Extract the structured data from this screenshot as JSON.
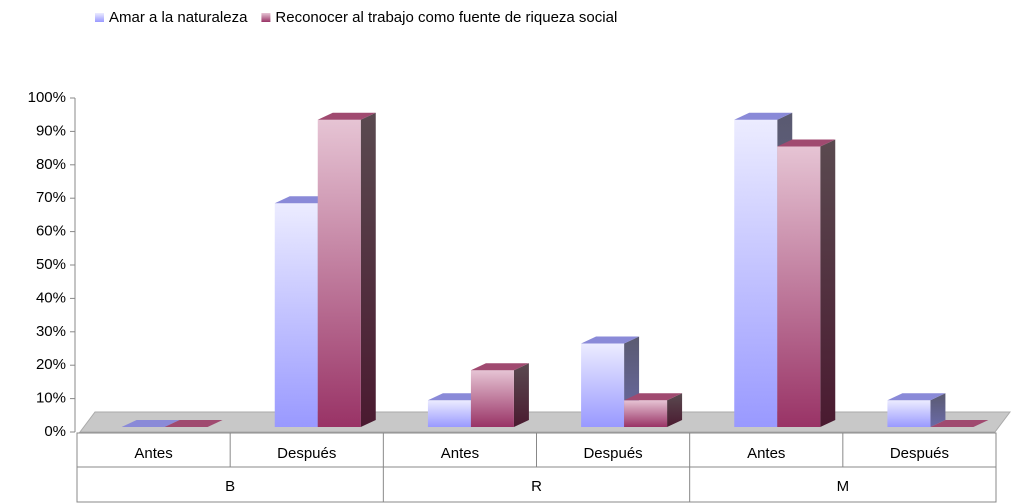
{
  "chart_data": {
    "type": "bar3d",
    "categories": [
      "Antes",
      "Después",
      "Antes",
      "Después",
      "Antes",
      "Después"
    ],
    "groups": [
      "B",
      "R",
      "M"
    ],
    "series": [
      {
        "name": "Amar a la naturaleza",
        "color": "#9999ff",
        "values": [
          0,
          67,
          8,
          25,
          92,
          8
        ]
      },
      {
        "name": "Reconocer al trabajo como fuente de riqueza social",
        "color": "#993366",
        "values": [
          0,
          92,
          17,
          8,
          84,
          0
        ]
      }
    ],
    "ylim": [
      0,
      100
    ],
    "yticks": [
      {
        "value": 0,
        "label": "0%"
      },
      {
        "value": 10,
        "label": "10%"
      },
      {
        "value": 20,
        "label": "20%"
      },
      {
        "value": 30,
        "label": "30%"
      },
      {
        "value": 40,
        "label": "40%"
      },
      {
        "value": 50,
        "label": "50%"
      },
      {
        "value": 60,
        "label": "60%"
      },
      {
        "value": 70,
        "label": "70%"
      },
      {
        "value": 80,
        "label": "80%"
      },
      {
        "value": 90,
        "label": "90%"
      },
      {
        "value": 100,
        "label": "100%"
      }
    ],
    "legend": "top"
  }
}
